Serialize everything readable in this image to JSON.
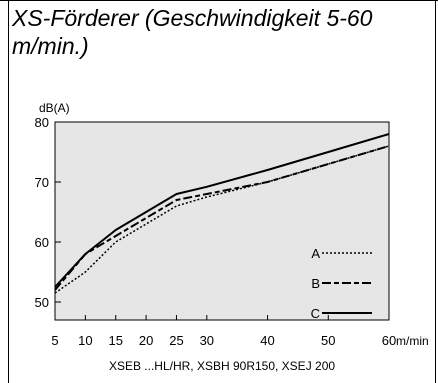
{
  "title": "XS-Förderer (Geschwindigkeit 5-60 m/min.)",
  "chart_data": {
    "type": "line",
    "ylabel": "dB(A)",
    "xunit": "m/min",
    "xcaption": "XSEB ...HL/HR, XSBH 90R150, XSEJ 200",
    "x_ticks": [
      5,
      10,
      15,
      20,
      25,
      30,
      40,
      50,
      60
    ],
    "y_ticks": [
      50,
      60,
      70,
      80
    ],
    "xlim": [
      5,
      60
    ],
    "ylim": [
      47,
      80
    ],
    "grid": false,
    "legend_position": "bottom-right",
    "series": [
      {
        "name": "A",
        "style": "dotted",
        "points": [
          [
            5,
            51.5
          ],
          [
            10,
            55
          ],
          [
            15,
            60
          ],
          [
            20,
            63
          ],
          [
            25,
            66
          ],
          [
            30,
            67.5
          ],
          [
            40,
            70
          ],
          [
            50,
            73
          ],
          [
            60,
            76
          ]
        ]
      },
      {
        "name": "B",
        "style": "dashed",
        "points": [
          [
            5,
            52
          ],
          [
            10,
            58
          ],
          [
            15,
            61
          ],
          [
            20,
            64
          ],
          [
            25,
            67
          ],
          [
            30,
            68
          ],
          [
            40,
            70
          ],
          [
            50,
            73
          ],
          [
            60,
            76
          ]
        ]
      },
      {
        "name": "C",
        "style": "solid",
        "points": [
          [
            5,
            52.5
          ],
          [
            10,
            58
          ],
          [
            15,
            62
          ],
          [
            20,
            65
          ],
          [
            25,
            68
          ],
          [
            30,
            69.2
          ],
          [
            40,
            72
          ],
          [
            50,
            75
          ],
          [
            60,
            78
          ]
        ]
      }
    ]
  }
}
